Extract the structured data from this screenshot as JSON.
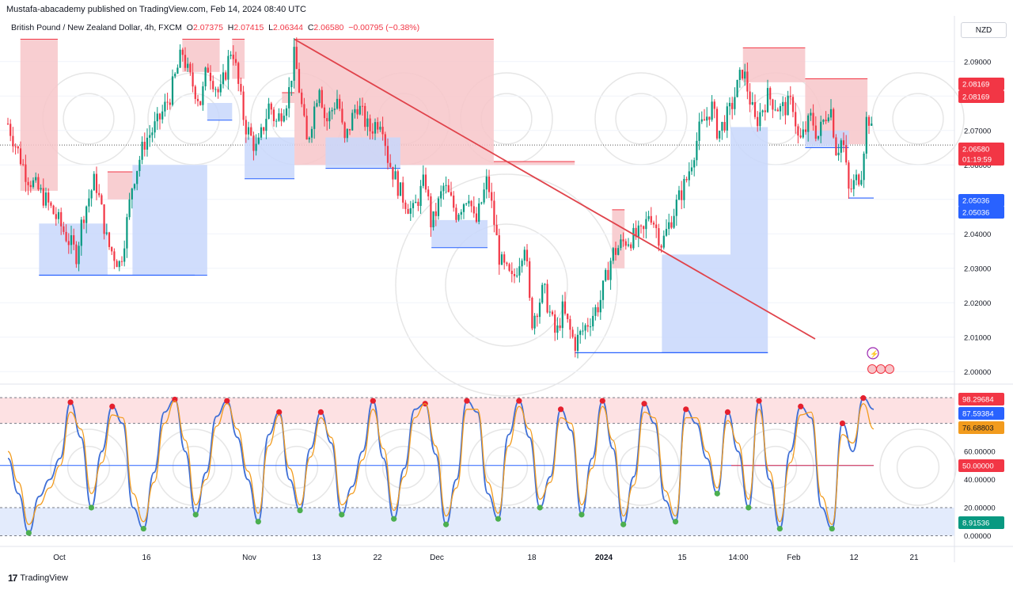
{
  "publisher_line": "Mustafa-abacademy published on TradingView.com, Feb 14, 2024 08:40 UTC",
  "symbol_line": {
    "name": "British Pound / New Zealand Dollar, 4h, FXCM",
    "o_label": "O",
    "o_value": "2.07375",
    "h_label": "H",
    "h_value": "2.07415",
    "l_label": "L",
    "l_value": "2.06344",
    "c_label": "C",
    "c_value": "2.06580",
    "change": "−0.00795 (−0.38%)"
  },
  "currency_button": "NZD",
  "footer_logo": "TradingView",
  "colors": {
    "bear": "#f23645",
    "bull": "#089981",
    "supply": "#f7c5c9",
    "demand": "#c8d7fb",
    "trendline": "#e0434b",
    "stoch_k": "#3f6fd6",
    "stoch_d": "#f29b1d"
  },
  "price_axis": {
    "ticks": [
      "2.09000",
      "2.08000",
      "2.07000",
      "2.06000",
      "2.05000",
      "2.04000",
      "2.03000",
      "2.02000",
      "2.01000",
      "2.00000"
    ],
    "labels": [
      {
        "text": "2.08169",
        "color": "#f23645"
      },
      {
        "text": "2.08169",
        "color": "#f23645"
      },
      {
        "text": "2.06580",
        "color": "#f23645"
      },
      {
        "text": "01:19:59",
        "color": "#f23645"
      },
      {
        "text": "2.05036",
        "color": "#2962ff"
      },
      {
        "text": "2.05036",
        "color": "#2962ff"
      }
    ]
  },
  "osc_axis": {
    "ticks": [
      "60.00000",
      "40.00000",
      "20.00000",
      "0.00000"
    ],
    "labels": [
      {
        "text": "98.29684",
        "color": "#f23645"
      },
      {
        "text": "87.59384",
        "color": "#2962ff"
      },
      {
        "text": "76.68803",
        "color": "#f29b1d"
      },
      {
        "text": "50.00000",
        "color": "#f23645"
      },
      {
        "text": "8.91536",
        "color": "#089981"
      }
    ]
  },
  "time_axis": [
    "Oct",
    "16",
    "Nov",
    "13",
    "22",
    "Dec",
    "18",
    "2024",
    "15",
    "14:00",
    "Feb",
    "12",
    "21"
  ],
  "chart_data": [
    {
      "type": "candlestick",
      "title": "British Pound / New Zealand Dollar, 4h, FXCM",
      "ylim": [
        1.998,
        2.098
      ],
      "last_close": 2.0658,
      "path_points": [
        [
          "Sep 28",
          2.072
        ],
        [
          "Oct 1",
          2.057
        ],
        [
          "Oct 4",
          2.05
        ],
        [
          "Oct 6",
          2.044
        ],
        [
          "Oct 9",
          2.034
        ],
        [
          "Oct 10",
          2.045
        ],
        [
          "Oct 12",
          2.056
        ],
        [
          "Oct 13",
          2.047
        ],
        [
          "Oct 14",
          2.037
        ],
        [
          "Oct 16",
          2.031
        ],
        [
          "Oct 17",
          2.042
        ],
        [
          "Oct 18",
          2.055
        ],
        [
          "Oct 20",
          2.067
        ],
        [
          "Oct 22",
          2.072
        ],
        [
          "Oct 24",
          2.08
        ],
        [
          "Oct 26",
          2.093
        ],
        [
          "Oct 27",
          2.086
        ],
        [
          "Oct 29",
          2.078
        ],
        [
          "Oct 30",
          2.089
        ],
        [
          "Nov 1",
          2.08
        ],
        [
          "Nov 3",
          2.095
        ],
        [
          "Nov 4",
          2.083
        ],
        [
          "Nov 5",
          2.072
        ],
        [
          "Nov 7",
          2.064
        ],
        [
          "Nov 9",
          2.078
        ],
        [
          "Nov 10",
          2.072
        ],
        [
          "Nov 12",
          2.08
        ],
        [
          "Nov 13",
          2.092
        ],
        [
          "Nov 15",
          2.066
        ],
        [
          "Nov 17",
          2.084
        ],
        [
          "Nov 18",
          2.072
        ],
        [
          "Nov 20",
          2.08
        ],
        [
          "Nov 21",
          2.066
        ],
        [
          "Nov 23",
          2.078
        ],
        [
          "Nov 25",
          2.07
        ],
        [
          "Nov 27",
          2.074
        ],
        [
          "Nov 28",
          2.062
        ],
        [
          "Nov 30",
          2.052
        ],
        [
          "Dec 2",
          2.046
        ],
        [
          "Dec 4",
          2.056
        ],
        [
          "Dec 5",
          2.042
        ],
        [
          "Dec 7",
          2.054
        ],
        [
          "Dec 9",
          2.046
        ],
        [
          "Dec 11",
          2.052
        ],
        [
          "Dec 12",
          2.042
        ],
        [
          "Dec 14",
          2.056
        ],
        [
          "Dec 16",
          2.032
        ],
        [
          "Dec 18",
          2.026
        ],
        [
          "Dec 20",
          2.038
        ],
        [
          "Dec 21",
          2.014
        ],
        [
          "Dec 23",
          2.024
        ],
        [
          "Dec 25",
          2.01
        ],
        [
          "Dec 26",
          2.018
        ],
        [
          "Dec 28",
          2.008
        ],
        [
          "Jan 1",
          2.02
        ],
        [
          "Jan 3",
          2.034
        ],
        [
          "Jan 5",
          2.038
        ],
        [
          "Jan 8",
          2.04
        ],
        [
          "Jan 9",
          2.047
        ],
        [
          "Jan 11",
          2.037
        ],
        [
          "Jan 13",
          2.047
        ],
        [
          "Jan 15",
          2.056
        ],
        [
          "Jan 17",
          2.07
        ],
        [
          "Jan 19",
          2.077
        ],
        [
          "Jan 20",
          2.069
        ],
        [
          "Jan 22",
          2.076
        ],
        [
          "Jan 24",
          2.088
        ],
        [
          "Jan 26",
          2.072
        ],
        [
          "Jan 28",
          2.08
        ],
        [
          "Jan 30",
          2.076
        ],
        [
          "Feb 1",
          2.078
        ],
        [
          "Feb 2",
          2.066
        ],
        [
          "Feb 4",
          2.074
        ],
        [
          "Feb 5",
          2.068
        ],
        [
          "Feb 7",
          2.078
        ],
        [
          "Feb 8",
          2.064
        ],
        [
          "Feb 9",
          2.068
        ],
        [
          "Feb 10",
          2.052
        ],
        [
          "Feb 12",
          2.058
        ],
        [
          "Feb 13",
          2.076
        ],
        [
          "Feb 14",
          2.0658
        ]
      ],
      "trendline": {
        "from": [
          "Nov 13",
          2.0965
        ],
        "to": [
          "Jan 20",
          2.0085
        ]
      },
      "supply_zones": [
        {
          "from": "Sep 30",
          "to": "Oct 6",
          "top": 2.0965,
          "bottom": 2.0525
        },
        {
          "from": "Oct 14",
          "to": "Oct 18",
          "top": 2.058,
          "bottom": 2.05
        },
        {
          "from": "Oct 26",
          "to": "Nov 1",
          "top": 2.0965,
          "bottom": 2.087
        },
        {
          "from": "Nov 3",
          "to": "Nov 5",
          "top": 2.0965,
          "bottom": 2.085
        },
        {
          "from": "Nov 11",
          "to": "Nov 13",
          "top": 2.081,
          "bottom": 2.078
        },
        {
          "from": "Nov 13",
          "to": "Dec 15",
          "top": 2.0965,
          "bottom": 2.06
        },
        {
          "from": "Dec 15",
          "to": "Dec 28",
          "top": 2.061,
          "bottom": 2.06
        },
        {
          "from": "Jan 3",
          "to": "Jan 5",
          "top": 2.047,
          "bottom": 2.03
        },
        {
          "from": "Jan 24",
          "to": "Feb 3",
          "top": 2.094,
          "bottom": 2.084
        },
        {
          "from": "Feb 3",
          "to": "Feb 13",
          "top": 2.085,
          "bottom": 2.066
        }
      ],
      "demand_zones": [
        {
          "from": "Oct 3",
          "to": "Oct 14",
          "top": 2.043,
          "bottom": 2.028
        },
        {
          "from": "Oct 18",
          "to": "Oct 30",
          "top": 2.06,
          "bottom": 2.028
        },
        {
          "from": "Oct 30",
          "to": "Nov 3",
          "top": 2.078,
          "bottom": 2.073
        },
        {
          "from": "Nov 5",
          "to": "Nov 13",
          "top": 2.068,
          "bottom": 2.056
        },
        {
          "from": "Nov 18",
          "to": "Nov 30",
          "top": 2.068,
          "bottom": 2.059
        },
        {
          "from": "Dec 5",
          "to": "Dec 14",
          "top": 2.044,
          "bottom": 2.036
        },
        {
          "from": "Jan 11",
          "to": "Jan 22",
          "top": 2.034,
          "bottom": 2.0055
        },
        {
          "from": "Jan 22",
          "to": "Jan 28",
          "top": 2.071,
          "bottom": 2.0055
        },
        {
          "from": "Feb 3",
          "to": "Feb 10",
          "top": 2.07,
          "bottom": 2.065
        }
      ],
      "horizontal_lines": [
        {
          "from": "Oct 3",
          "to": "Oct 28",
          "value": 2.028,
          "color": "#2962ff"
        },
        {
          "from": "Dec 28",
          "to": "Jan 28",
          "value": 2.0055,
          "color": "#2962ff"
        },
        {
          "from": "Feb 10",
          "to": "Feb 14",
          "value": 2.0504,
          "color": "#2962ff"
        }
      ]
    },
    {
      "type": "line",
      "title": "Stochastic Oscillator",
      "ylim": [
        -2,
        104
      ],
      "levels": {
        "upper": 80,
        "middle": 50,
        "lower": 20
      },
      "series": [
        {
          "name": "%K",
          "color": "#3f6fd6",
          "values": [
            55,
            30,
            2,
            28,
            40,
            55,
            95,
            70,
            20,
            60,
            92,
            80,
            20,
            5,
            45,
            88,
            97,
            60,
            15,
            45,
            85,
            96,
            70,
            40,
            10,
            72,
            88,
            40,
            18,
            62,
            88,
            66,
            15,
            35,
            60,
            96,
            55,
            12,
            48,
            90,
            94,
            58,
            8,
            40,
            96,
            88,
            30,
            12,
            72,
            96,
            70,
            20,
            42,
            90,
            75,
            15,
            55,
            96,
            62,
            8,
            42,
            94,
            80,
            25,
            10,
            90,
            80,
            55,
            30,
            88,
            60,
            20,
            96,
            40,
            5,
            60,
            92,
            84,
            20,
            5,
            80,
            60,
            98,
            90
          ]
        },
        {
          "name": "%D",
          "color": "#f29b1d",
          "values": [
            60,
            38,
            8,
            22,
            34,
            50,
            88,
            76,
            30,
            52,
            86,
            84,
            30,
            10,
            38,
            80,
            96,
            68,
            22,
            40,
            78,
            94,
            76,
            46,
            16,
            64,
            86,
            48,
            22,
            56,
            84,
            70,
            22,
            30,
            54,
            90,
            62,
            18,
            42,
            84,
            94,
            64,
            14,
            34,
            90,
            90,
            38,
            16,
            64,
            92,
            76,
            26,
            38,
            84,
            80,
            22,
            48,
            92,
            68,
            14,
            36,
            88,
            84,
            32,
            14,
            84,
            84,
            60,
            34,
            82,
            66,
            26,
            90,
            46,
            10,
            52,
            86,
            88,
            28,
            8,
            72,
            66,
            94,
            76
          ]
        }
      ],
      "last_values": {
        "k": 87.59384,
        "d": 76.68803
      }
    }
  ]
}
